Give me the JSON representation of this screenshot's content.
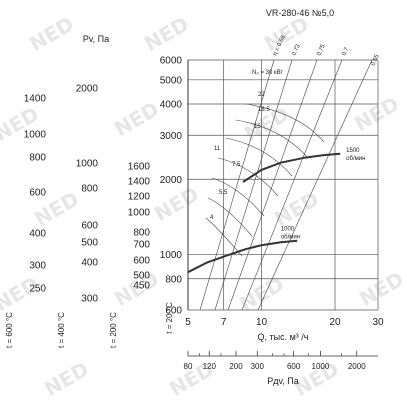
{
  "chart_data": {
    "type": "line",
    "title": "VR-280-46 №5,0",
    "xlabel": "Q, тыс. м³ /ч",
    "ylabel": "Pv, Па",
    "x_scale": "log",
    "y_scale": "log",
    "xlim": [
      5,
      30
    ],
    "ylim": [
      600,
      6000
    ],
    "x_ticks": [
      5,
      7,
      10,
      20,
      30
    ],
    "y_ticks": [
      600,
      800,
      1000,
      2000,
      3000,
      4000,
      5000,
      6000
    ],
    "aux_axes": [
      {
        "label": "t = 600 °C",
        "ticks": [
          250,
          300,
          400,
          600,
          800,
          1000,
          1400
        ]
      },
      {
        "label": "t = 400 °C",
        "ticks": [
          300,
          400,
          500,
          600,
          800,
          1000,
          2000
        ]
      },
      {
        "label": "t = 200 °C",
        "ticks": [
          450,
          500,
          600,
          700,
          800,
          1000,
          1200,
          1400,
          1600
        ]
      },
      {
        "label": "t = 20 °C",
        "ticks": []
      }
    ],
    "dynamic_axis": {
      "label": "Pдv, Па",
      "ticks": [
        80,
        120,
        200,
        300,
        600,
        1000,
        2000
      ]
    },
    "series": [
      {
        "name": "1500 об/мин",
        "x": [
          8.4,
          10,
          12,
          15,
          18,
          21
        ],
        "y": [
          1950,
          2180,
          2330,
          2440,
          2500,
          2530
        ]
      },
      {
        "name": "1000 об/мин",
        "x": [
          5.0,
          6,
          7.2,
          8.6,
          10,
          12,
          14
        ],
        "y": [
          850,
          930,
          990,
          1050,
          1090,
          1120,
          1135
        ]
      }
    ],
    "power_labels": [
      "N₀ = 30 кВт",
      "22",
      "18.5",
      "15",
      "11",
      "7.5",
      "5.5",
      "4"
    ],
    "efficiency_labels": [
      "η = 0.66",
      "0.73",
      "0.75",
      "0.7",
      "0.55"
    ]
  },
  "watermark_text": "NED"
}
